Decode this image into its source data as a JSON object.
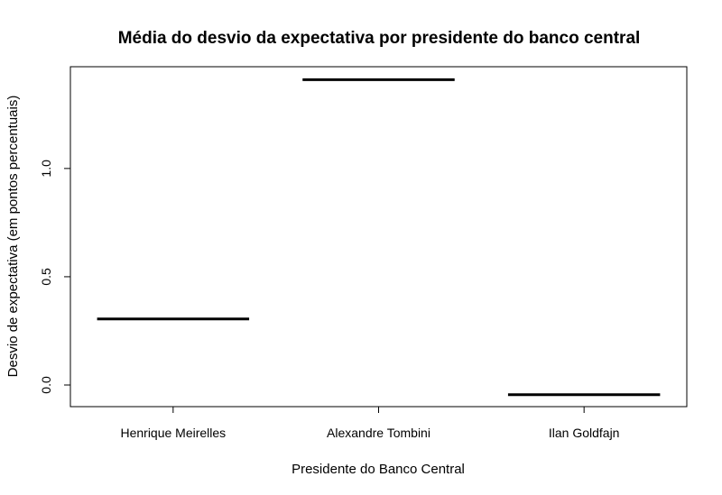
{
  "chart_data": {
    "type": "bar",
    "title": "Média do desvio da expectativa por presidente do banco central",
    "xlabel": "Presidente do Banco Central",
    "ylabel": "Desvio de expectativa (em pontos percentuais)",
    "categories": [
      "Henrique Meirelles",
      "Alexandre Tombini",
      "Ilan Goldfajn"
    ],
    "values": [
      0.305,
      1.41,
      -0.045
    ],
    "ylim": [
      -0.1,
      1.47
    ],
    "yticks": [
      0.0,
      0.5,
      1.0
    ],
    "ytick_labels": [
      "0.0",
      "0.5",
      "1.0"
    ],
    "mark_style": "horizontal segment",
    "grid": false,
    "legend": "none"
  }
}
